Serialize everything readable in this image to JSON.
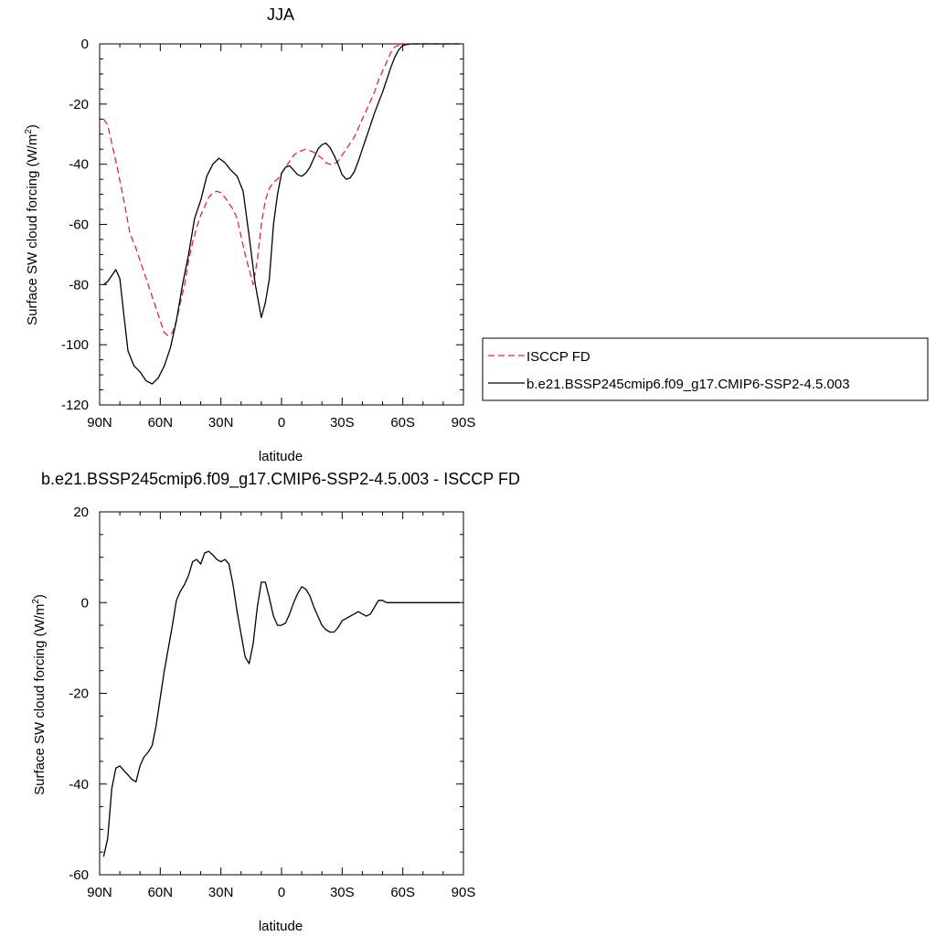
{
  "chart_data": [
    {
      "type": "line",
      "title": "JJA",
      "xlabel": "latitude",
      "ylabel": "Surface SW cloud forcing (W/m",
      "ylabel_sup": "2",
      "ylabel_end": ")",
      "xlim": [
        90,
        -90
      ],
      "ylim": [
        -120,
        0
      ],
      "x_ticks": [
        90,
        60,
        30,
        0,
        -30,
        -60,
        -90
      ],
      "x_tick_labels": [
        "90N",
        "60N",
        "30N",
        "0",
        "30S",
        "60S",
        "90S"
      ],
      "y_ticks": [
        -120,
        -100,
        -80,
        -60,
        -40,
        -20,
        0
      ],
      "y_tick_labels": [
        "-120",
        "-100",
        "-80",
        "-60",
        "-40",
        "-20",
        "0"
      ],
      "grid": false,
      "legend_position": "right",
      "series": [
        {
          "name": "ISCCP FD",
          "color": "#e8262a",
          "dash": "dashed",
          "x": [
            88,
            86,
            84,
            81,
            78,
            75,
            72,
            69,
            66,
            63,
            60,
            58,
            56,
            54,
            52,
            50,
            48,
            46,
            44,
            42,
            40,
            38,
            36,
            34,
            32,
            30,
            28,
            26,
            24,
            22,
            20,
            18,
            16,
            14,
            12,
            10,
            8,
            6,
            4,
            2,
            0,
            -2,
            -4,
            -6,
            -8,
            -10,
            -12,
            -14,
            -16,
            -18,
            -20,
            -22,
            -24,
            -26,
            -28,
            -30,
            -32,
            -34,
            -36,
            -38,
            -40,
            -42,
            -44,
            -46,
            -48,
            -50,
            -52,
            -54,
            -56,
            -58,
            -60,
            -62,
            -64,
            -66,
            -68,
            -70,
            -72,
            -75,
            -80,
            -85,
            -88
          ],
          "y": [
            -25,
            -27,
            -33,
            -42,
            -52,
            -63,
            -68,
            -74,
            -80,
            -86,
            -92,
            -96,
            -97,
            -96,
            -92,
            -86,
            -80,
            -72,
            -66,
            -61,
            -57,
            -54,
            -51,
            -49.5,
            -49,
            -49.5,
            -51,
            -53,
            -55,
            -58,
            -64,
            -70,
            -75,
            -80,
            -72,
            -60,
            -52,
            -48,
            -46,
            -45,
            -43,
            -41,
            -39,
            -37,
            -36,
            -35.5,
            -35,
            -35.5,
            -36,
            -37,
            -38,
            -39.5,
            -40,
            -40,
            -39,
            -37,
            -35,
            -33,
            -31,
            -28,
            -25,
            -22,
            -19,
            -16,
            -12,
            -9,
            -6,
            -3,
            -1,
            -0.5,
            -0.2,
            0,
            0,
            0,
            0,
            0,
            0,
            0,
            0,
            0,
            0
          ]
        },
        {
          "name": "b.e21.BSSP245cmip6.f09_g17.CMIP6-SSP2-4.5.003",
          "color": "#000000",
          "dash": "solid",
          "x": [
            88,
            86,
            84,
            82,
            80,
            78,
            76,
            73,
            70,
            67,
            64,
            61,
            58,
            55,
            52,
            49,
            46,
            43,
            40,
            37,
            34,
            31,
            28,
            25,
            22,
            19,
            16,
            13,
            10,
            8,
            6,
            4,
            2,
            0,
            -2,
            -4,
            -6,
            -8,
            -10,
            -12,
            -14,
            -16,
            -18,
            -20,
            -22,
            -24,
            -26,
            -28,
            -30,
            -32,
            -34,
            -36,
            -38,
            -40,
            -42,
            -44,
            -46,
            -48,
            -50,
            -52,
            -54,
            -56,
            -58,
            -60,
            -62,
            -64,
            -66,
            -68,
            -70,
            -72,
            -75,
            -80,
            -85,
            -88
          ],
          "y": [
            -80,
            -79,
            -77,
            -75,
            -78,
            -90,
            -102,
            -107,
            -109,
            -112,
            -113,
            -111,
            -107,
            -101,
            -92,
            -80,
            -70,
            -58,
            -52,
            -44,
            -40,
            -38,
            -39.5,
            -42,
            -44,
            -49,
            -64,
            -80,
            -91,
            -86,
            -78,
            -60,
            -50,
            -43,
            -41,
            -40.5,
            -42,
            -43.5,
            -44,
            -43,
            -41,
            -38,
            -35,
            -33.5,
            -33,
            -34.5,
            -37,
            -40,
            -43.5,
            -45,
            -44.5,
            -42.5,
            -39,
            -35,
            -31,
            -27,
            -23,
            -19.5,
            -16,
            -12,
            -8,
            -4.5,
            -2,
            -0.5,
            -0.2,
            0,
            0,
            0,
            0,
            0,
            0,
            0,
            0,
            0
          ]
        }
      ]
    },
    {
      "type": "line",
      "title": "b.e21.BSSP245cmip6.f09_g17.CMIP6-SSP2-4.5.003 - ISCCP FD",
      "xlabel": "latitude",
      "ylabel": "Surface SW cloud forcing (W/m",
      "ylabel_sup": "2",
      "ylabel_end": ")",
      "xlim": [
        90,
        -90
      ],
      "ylim": [
        -60,
        20
      ],
      "x_ticks": [
        90,
        60,
        30,
        0,
        -30,
        -60,
        -90
      ],
      "x_tick_labels": [
        "90N",
        "60N",
        "30N",
        "0",
        "30S",
        "60S",
        "90S"
      ],
      "y_ticks": [
        -60,
        -40,
        -20,
        0,
        20
      ],
      "y_tick_labels": [
        "-60",
        "-40",
        "-20",
        "0",
        "20"
      ],
      "grid": false,
      "series": [
        {
          "color": "#000000",
          "dash": "solid",
          "x": [
            88,
            86,
            84,
            82,
            80,
            78,
            76,
            74,
            72,
            70,
            68,
            66,
            64,
            62,
            60,
            58,
            56,
            54,
            52,
            50,
            48,
            46,
            44,
            42,
            40,
            38,
            36,
            34,
            32,
            30,
            28,
            26,
            24,
            22,
            20,
            18,
            16,
            14,
            12,
            10,
            8,
            6,
            4,
            2,
            0,
            -2,
            -4,
            -6,
            -8,
            -10,
            -12,
            -14,
            -16,
            -18,
            -20,
            -22,
            -24,
            -26,
            -28,
            -30,
            -32,
            -34,
            -36,
            -38,
            -40,
            -42,
            -44,
            -46,
            -48,
            -50,
            -52,
            -54,
            -56,
            -58,
            -60,
            -62,
            -64,
            -66,
            -68,
            -70,
            -72,
            -75,
            -80,
            -85,
            -88
          ],
          "y": [
            -56,
            -52,
            -41,
            -36.5,
            -36,
            -37,
            -38,
            -39,
            -39.5,
            -36,
            -34,
            -33,
            -31.5,
            -27,
            -21,
            -15,
            -10,
            -5,
            0.5,
            2.5,
            4,
            6,
            9,
            9.5,
            8.5,
            11,
            11.3,
            10.5,
            9.5,
            9,
            9.5,
            8.5,
            4,
            -2,
            -7,
            -12,
            -13.5,
            -9,
            -1,
            4.5,
            4.5,
            1,
            -3,
            -5,
            -5,
            -4.5,
            -2.5,
            0,
            2,
            3.5,
            3,
            1.5,
            -1,
            -3,
            -5,
            -6,
            -6.5,
            -6.5,
            -5.5,
            -4,
            -3.5,
            -3,
            -2.5,
            -2,
            -2.5,
            -3,
            -2.5,
            -1,
            0.5,
            0.5,
            0,
            0,
            0,
            0,
            0,
            0,
            0,
            0,
            0,
            0,
            0,
            0,
            0,
            0,
            0
          ]
        }
      ]
    }
  ]
}
